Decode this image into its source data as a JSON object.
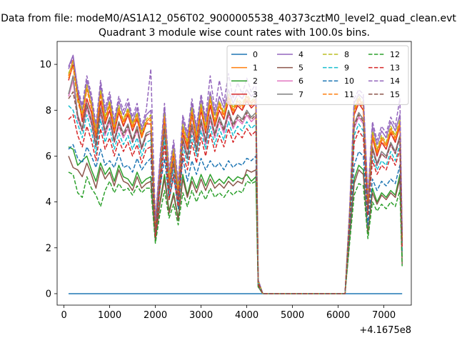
{
  "chart_data": {
    "type": "line",
    "suptitle": "Data from file: modeM0/AS1A12_056T02_9000005538_40373cztM0_level2_quad_clean.evt",
    "title": "Quadrant 3 module wise count rates with 100.0s bins.",
    "x_offset_label": "+4.1675e8",
    "xlim": [
      -150,
      7600
    ],
    "ylim": [
      -0.5,
      11
    ],
    "xticks": [
      0,
      1000,
      2000,
      3000,
      4000,
      5000,
      6000,
      7000
    ],
    "yticks": [
      0,
      2,
      4,
      6,
      8,
      10
    ],
    "x": [
      100,
      200,
      300,
      400,
      500,
      600,
      700,
      800,
      900,
      1000,
      1100,
      1200,
      1300,
      1400,
      1500,
      1600,
      1700,
      1800,
      1900,
      2000,
      2100,
      2200,
      2300,
      2400,
      2500,
      2600,
      2700,
      2800,
      2900,
      3000,
      3100,
      3200,
      3300,
      3400,
      3500,
      3600,
      3700,
      3800,
      3900,
      4000,
      4100,
      4200,
      4250,
      4350,
      6150,
      6250,
      6350,
      6450,
      6550,
      6650,
      6750,
      6850,
      6950,
      7050,
      7150,
      7250,
      7350,
      7400
    ],
    "legend": {
      "location": "upper right",
      "columns": 4
    },
    "series": [
      {
        "name": "0",
        "color": "#1f77b4",
        "dash": "solid",
        "values": [
          0,
          0,
          0,
          0,
          0,
          0,
          0,
          0,
          0,
          0,
          0,
          0,
          0,
          0,
          0,
          0,
          0,
          0,
          0,
          0,
          0,
          0,
          0,
          0,
          0,
          0,
          0,
          0,
          0,
          0,
          0,
          0,
          0,
          0,
          0,
          0,
          0,
          0,
          0,
          0,
          0,
          0,
          0,
          0,
          0,
          0,
          0,
          0,
          0,
          0,
          0,
          0,
          0,
          0,
          0,
          0,
          0,
          0
        ]
      },
      {
        "name": "1",
        "color": "#ff7f0e",
        "dash": "solid",
        "values": [
          9.5,
          10.2,
          8.5,
          7.8,
          9.0,
          8.2,
          7.0,
          8.8,
          7.6,
          8.3,
          7.2,
          8.1,
          7.5,
          8.0,
          7.3,
          7.8,
          6.9,
          7.5,
          7.7,
          3.0,
          5.5,
          7.8,
          5.0,
          6.2,
          4.5,
          7.3,
          6.5,
          8.0,
          6.8,
          8.2,
          7.2,
          8.5,
          7.5,
          8.3,
          7.8,
          8.6,
          8.0,
          8.4,
          8.2,
          8.6,
          8.3,
          8.5,
          0.5,
          0,
          0,
          3.5,
          8.0,
          8.5,
          8.2,
          4.0,
          7.0,
          6.2,
          6.8,
          6.5,
          7.2,
          6.8,
          7.5,
          2.5
        ]
      },
      {
        "name": "2",
        "color": "#2ca02c",
        "dash": "solid",
        "values": [
          6.4,
          6.3,
          5.6,
          5.8,
          6.0,
          5.4,
          4.9,
          5.7,
          5.2,
          5.5,
          4.9,
          5.6,
          5.1,
          5.0,
          4.7,
          5.3,
          4.8,
          5.0,
          5.1,
          2.4,
          4.0,
          5.2,
          3.6,
          4.4,
          3.3,
          5.2,
          4.3,
          5.1,
          4.6,
          5.2,
          4.7,
          5.2,
          4.8,
          5.0,
          4.8,
          5.1,
          4.9,
          5.1,
          5.0,
          5.2,
          4.9,
          5.1,
          0.3,
          0,
          0,
          2.5,
          5.0,
          5.6,
          5.4,
          2.6,
          4.6,
          4.0,
          4.4,
          4.2,
          4.5,
          4.3,
          5.2,
          1.6
        ]
      },
      {
        "name": "3",
        "color": "#d62728",
        "dash": "solid",
        "values": [
          9.3,
          10.0,
          8.8,
          7.5,
          8.5,
          7.9,
          6.8,
          8.4,
          7.4,
          8.0,
          7.0,
          7.9,
          7.3,
          7.8,
          7.1,
          7.6,
          6.8,
          7.4,
          7.4,
          2.9,
          5.3,
          7.6,
          4.8,
          6.0,
          4.3,
          7.0,
          6.3,
          7.8,
          6.6,
          8.0,
          7.0,
          8.2,
          7.3,
          8.0,
          7.6,
          8.4,
          7.8,
          8.2,
          8.0,
          8.4,
          8.1,
          8.3,
          0.5,
          0,
          0,
          3.4,
          7.8,
          8.3,
          8.0,
          3.9,
          6.8,
          6.0,
          6.6,
          6.3,
          7.0,
          6.6,
          7.3,
          2.4
        ]
      },
      {
        "name": "4",
        "color": "#9467bd",
        "dash": "solid",
        "values": [
          9.9,
          10.4,
          8.9,
          8.0,
          9.3,
          8.5,
          7.2,
          9.1,
          7.9,
          8.6,
          7.4,
          8.4,
          7.8,
          8.3,
          7.5,
          8.1,
          7.1,
          7.8,
          8.0,
          3.1,
          5.7,
          8.1,
          5.2,
          6.5,
          4.7,
          7.6,
          6.8,
          8.3,
          7.1,
          8.5,
          7.5,
          8.8,
          7.8,
          8.6,
          8.1,
          8.9,
          8.3,
          8.7,
          8.5,
          8.9,
          8.6,
          8.8,
          0.6,
          0,
          0,
          3.6,
          8.3,
          8.7,
          8.5,
          4.2,
          7.3,
          6.5,
          7.1,
          6.8,
          7.5,
          7.1,
          7.8,
          2.6
        ]
      },
      {
        "name": "5",
        "color": "#8c564b",
        "dash": "solid",
        "values": [
          6.0,
          5.5,
          5.4,
          5.1,
          5.7,
          5.2,
          4.6,
          5.5,
          5.0,
          5.3,
          4.7,
          5.4,
          4.9,
          4.8,
          4.5,
          5.1,
          4.6,
          4.8,
          4.9,
          2.3,
          3.9,
          5.0,
          3.5,
          4.3,
          3.2,
          5.0,
          4.2,
          4.9,
          4.4,
          5.0,
          4.5,
          5.0,
          4.6,
          4.8,
          4.6,
          4.9,
          4.7,
          4.9,
          4.8,
          5.4,
          5.3,
          5.4,
          0.3,
          0,
          0,
          2.4,
          4.8,
          5.4,
          5.2,
          2.6,
          4.4,
          3.9,
          4.3,
          4.1,
          4.4,
          4.2,
          5.0,
          1.3
        ]
      },
      {
        "name": "6",
        "color": "#e377c2",
        "dash": "solid",
        "values": [
          8.6,
          9.3,
          7.6,
          7.1,
          8.1,
          7.4,
          6.4,
          7.9,
          6.9,
          7.5,
          6.6,
          7.3,
          6.8,
          7.2,
          6.6,
          7.1,
          6.3,
          6.9,
          7.0,
          2.7,
          5.0,
          7.1,
          4.5,
          5.6,
          4.1,
          6.6,
          5.9,
          7.2,
          6.2,
          7.4,
          6.5,
          7.6,
          6.8,
          7.5,
          7.0,
          7.8,
          7.2,
          7.6,
          7.4,
          7.8,
          7.5,
          7.7,
          0.5,
          0,
          0,
          3.2,
          7.2,
          7.7,
          7.4,
          3.6,
          6.3,
          5.6,
          6.1,
          5.9,
          6.5,
          6.1,
          6.8,
          2.2
        ]
      },
      {
        "name": "7",
        "color": "#7f7f7f",
        "dash": "solid",
        "values": [
          8.7,
          9.5,
          7.8,
          7.2,
          8.3,
          7.6,
          6.5,
          8.1,
          7.1,
          7.7,
          6.7,
          7.5,
          7.0,
          7.4,
          6.7,
          7.3,
          6.4,
          7.0,
          7.1,
          2.8,
          5.1,
          7.3,
          4.6,
          5.8,
          4.2,
          6.8,
          6.0,
          7.4,
          6.3,
          7.6,
          6.7,
          7.8,
          7.0,
          7.7,
          7.2,
          8.0,
          7.4,
          7.8,
          7.6,
          8.0,
          7.7,
          7.9,
          0.5,
          0,
          0,
          3.3,
          7.4,
          7.9,
          7.6,
          3.7,
          6.4,
          5.7,
          6.2,
          6.0,
          6.6,
          6.2,
          6.9,
          2.3
        ]
      },
      {
        "name": "8",
        "color": "#bcbd22",
        "dash": "dashed",
        "values": [
          9.6,
          10.1,
          8.6,
          7.9,
          9.1,
          8.3,
          7.1,
          8.9,
          7.7,
          8.4,
          7.3,
          8.2,
          7.6,
          8.1,
          7.4,
          7.9,
          7.0,
          7.6,
          7.8,
          3.0,
          5.6,
          7.9,
          5.1,
          6.3,
          4.6,
          7.4,
          6.6,
          8.1,
          6.9,
          8.3,
          7.3,
          8.6,
          7.6,
          8.4,
          7.9,
          8.7,
          8.1,
          8.5,
          8.3,
          8.7,
          8.4,
          8.6,
          0.6,
          0,
          0,
          3.5,
          8.1,
          8.6,
          8.3,
          4.1,
          7.1,
          6.3,
          6.9,
          6.6,
          7.3,
          6.9,
          7.6,
          2.5
        ]
      },
      {
        "name": "9",
        "color": "#17becf",
        "dash": "dashed",
        "values": [
          8.2,
          8.0,
          7.4,
          6.8,
          7.8,
          7.1,
          6.1,
          7.6,
          6.6,
          7.2,
          6.3,
          7.0,
          6.5,
          6.9,
          6.3,
          6.8,
          6.0,
          6.6,
          6.7,
          2.6,
          4.8,
          6.8,
          4.3,
          5.4,
          3.9,
          6.4,
          5.7,
          6.9,
          6.0,
          7.1,
          6.3,
          7.3,
          6.5,
          7.2,
          6.7,
          7.5,
          6.9,
          7.3,
          7.1,
          7.5,
          7.2,
          7.4,
          0.4,
          0,
          0,
          3.1,
          6.9,
          7.4,
          7.1,
          3.5,
          6.0,
          5.4,
          5.8,
          5.6,
          6.2,
          5.8,
          6.5,
          2.1
        ]
      },
      {
        "name": "10",
        "color": "#1f77b4",
        "dash": "dashed",
        "values": [
          6.3,
          6.5,
          5.9,
          5.7,
          6.4,
          6.0,
          5.5,
          6.3,
          5.6,
          5.8,
          5.5,
          6.1,
          5.5,
          5.6,
          5.3,
          5.9,
          5.4,
          5.7,
          5.9,
          2.7,
          4.6,
          5.9,
          4.1,
          5.1,
          3.7,
          5.9,
          4.9,
          5.8,
          5.2,
          5.9,
          5.4,
          5.8,
          5.5,
          5.7,
          5.4,
          5.8,
          5.5,
          5.7,
          5.6,
          5.9,
          5.8,
          6.0,
          0.4,
          0,
          0,
          2.8,
          5.6,
          6.2,
          6.0,
          3.0,
          5.0,
          4.5,
          4.9,
          4.7,
          5.0,
          4.8,
          5.6,
          1.8
        ]
      },
      {
        "name": "11",
        "color": "#ff7f0e",
        "dash": "dashed",
        "values": [
          9.4,
          9.9,
          8.4,
          7.7,
          8.9,
          8.1,
          6.9,
          8.7,
          7.5,
          8.2,
          7.1,
          8.0,
          7.4,
          7.9,
          7.2,
          7.7,
          6.8,
          7.4,
          7.6,
          2.9,
          5.4,
          7.7,
          4.9,
          6.1,
          4.4,
          7.2,
          6.4,
          7.9,
          6.7,
          8.1,
          7.1,
          8.4,
          7.4,
          8.2,
          7.7,
          8.5,
          7.9,
          8.3,
          8.1,
          8.5,
          8.2,
          8.4,
          0.5,
          0,
          0,
          3.4,
          7.9,
          8.4,
          8.1,
          4.0,
          6.9,
          6.1,
          6.7,
          6.4,
          7.1,
          6.7,
          7.4,
          2.4
        ]
      },
      {
        "name": "12",
        "color": "#2ca02c",
        "dash": "dashed",
        "values": [
          5.3,
          5.2,
          4.4,
          4.2,
          5.1,
          4.6,
          4.3,
          3.8,
          4.5,
          4.9,
          4.4,
          4.8,
          4.5,
          4.6,
          4.3,
          4.7,
          4.4,
          4.6,
          4.6,
          2.2,
          3.5,
          4.5,
          3.3,
          3.9,
          3.0,
          4.4,
          3.8,
          4.5,
          4.0,
          4.5,
          4.1,
          4.6,
          4.2,
          4.4,
          4.2,
          4.5,
          4.3,
          4.5,
          4.4,
          4.9,
          4.8,
          4.9,
          0.3,
          0,
          0,
          2.2,
          4.3,
          4.8,
          4.7,
          2.4,
          4.0,
          3.6,
          3.9,
          3.7,
          4.0,
          3.8,
          4.5,
          1.2
        ]
      },
      {
        "name": "13",
        "color": "#d62728",
        "dash": "dashed",
        "values": [
          7.6,
          7.8,
          6.9,
          6.4,
          7.3,
          6.7,
          5.8,
          7.2,
          6.3,
          6.8,
          6.0,
          6.7,
          6.2,
          6.6,
          6.0,
          6.5,
          5.7,
          6.3,
          6.4,
          2.5,
          4.6,
          6.5,
          4.1,
          5.2,
          3.8,
          6.1,
          5.4,
          6.6,
          5.7,
          6.8,
          6.0,
          7.0,
          6.2,
          6.9,
          6.4,
          7.2,
          6.6,
          7.0,
          6.8,
          7.2,
          6.9,
          7.1,
          0.4,
          0,
          0,
          3.0,
          6.6,
          7.1,
          6.8,
          3.4,
          5.8,
          5.2,
          5.6,
          5.4,
          6.0,
          5.6,
          6.3,
          2.0
        ]
      },
      {
        "name": "14",
        "color": "#9467bd",
        "dash": "dashed",
        "values": [
          9.8,
          10.3,
          9.0,
          8.2,
          9.5,
          8.7,
          7.4,
          9.3,
          8.1,
          8.8,
          7.6,
          8.6,
          8.0,
          8.5,
          7.7,
          8.3,
          7.3,
          8.0,
          9.8,
          3.2,
          5.9,
          8.3,
          5.4,
          6.7,
          4.9,
          7.8,
          7.0,
          8.5,
          7.3,
          8.7,
          7.7,
          9.5,
          8.0,
          9.3,
          8.3,
          9.6,
          8.5,
          9.2,
          8.7,
          9.4,
          8.8,
          9.2,
          0.6,
          0,
          0,
          3.7,
          8.5,
          8.9,
          8.7,
          4.3,
          7.5,
          6.7,
          7.3,
          7.0,
          7.7,
          7.3,
          8.5,
          2.7
        ]
      },
      {
        "name": "15",
        "color": "#8c564b",
        "dash": "dashed",
        "values": [
          8.5,
          8.8,
          7.7,
          7.1,
          8.2,
          7.5,
          6.4,
          8.0,
          7.0,
          7.6,
          6.6,
          7.4,
          6.9,
          7.3,
          6.6,
          7.2,
          6.3,
          6.9,
          7.0,
          2.7,
          5.0,
          7.2,
          4.5,
          5.7,
          4.1,
          6.7,
          5.9,
          7.3,
          6.2,
          7.5,
          6.6,
          7.7,
          6.9,
          7.6,
          7.1,
          7.9,
          7.3,
          7.7,
          7.5,
          7.9,
          7.6,
          7.8,
          0.5,
          0,
          0,
          3.2,
          7.3,
          7.8,
          7.5,
          3.6,
          6.3,
          5.6,
          6.1,
          5.9,
          6.5,
          6.1,
          6.8,
          2.2
        ]
      }
    ]
  }
}
